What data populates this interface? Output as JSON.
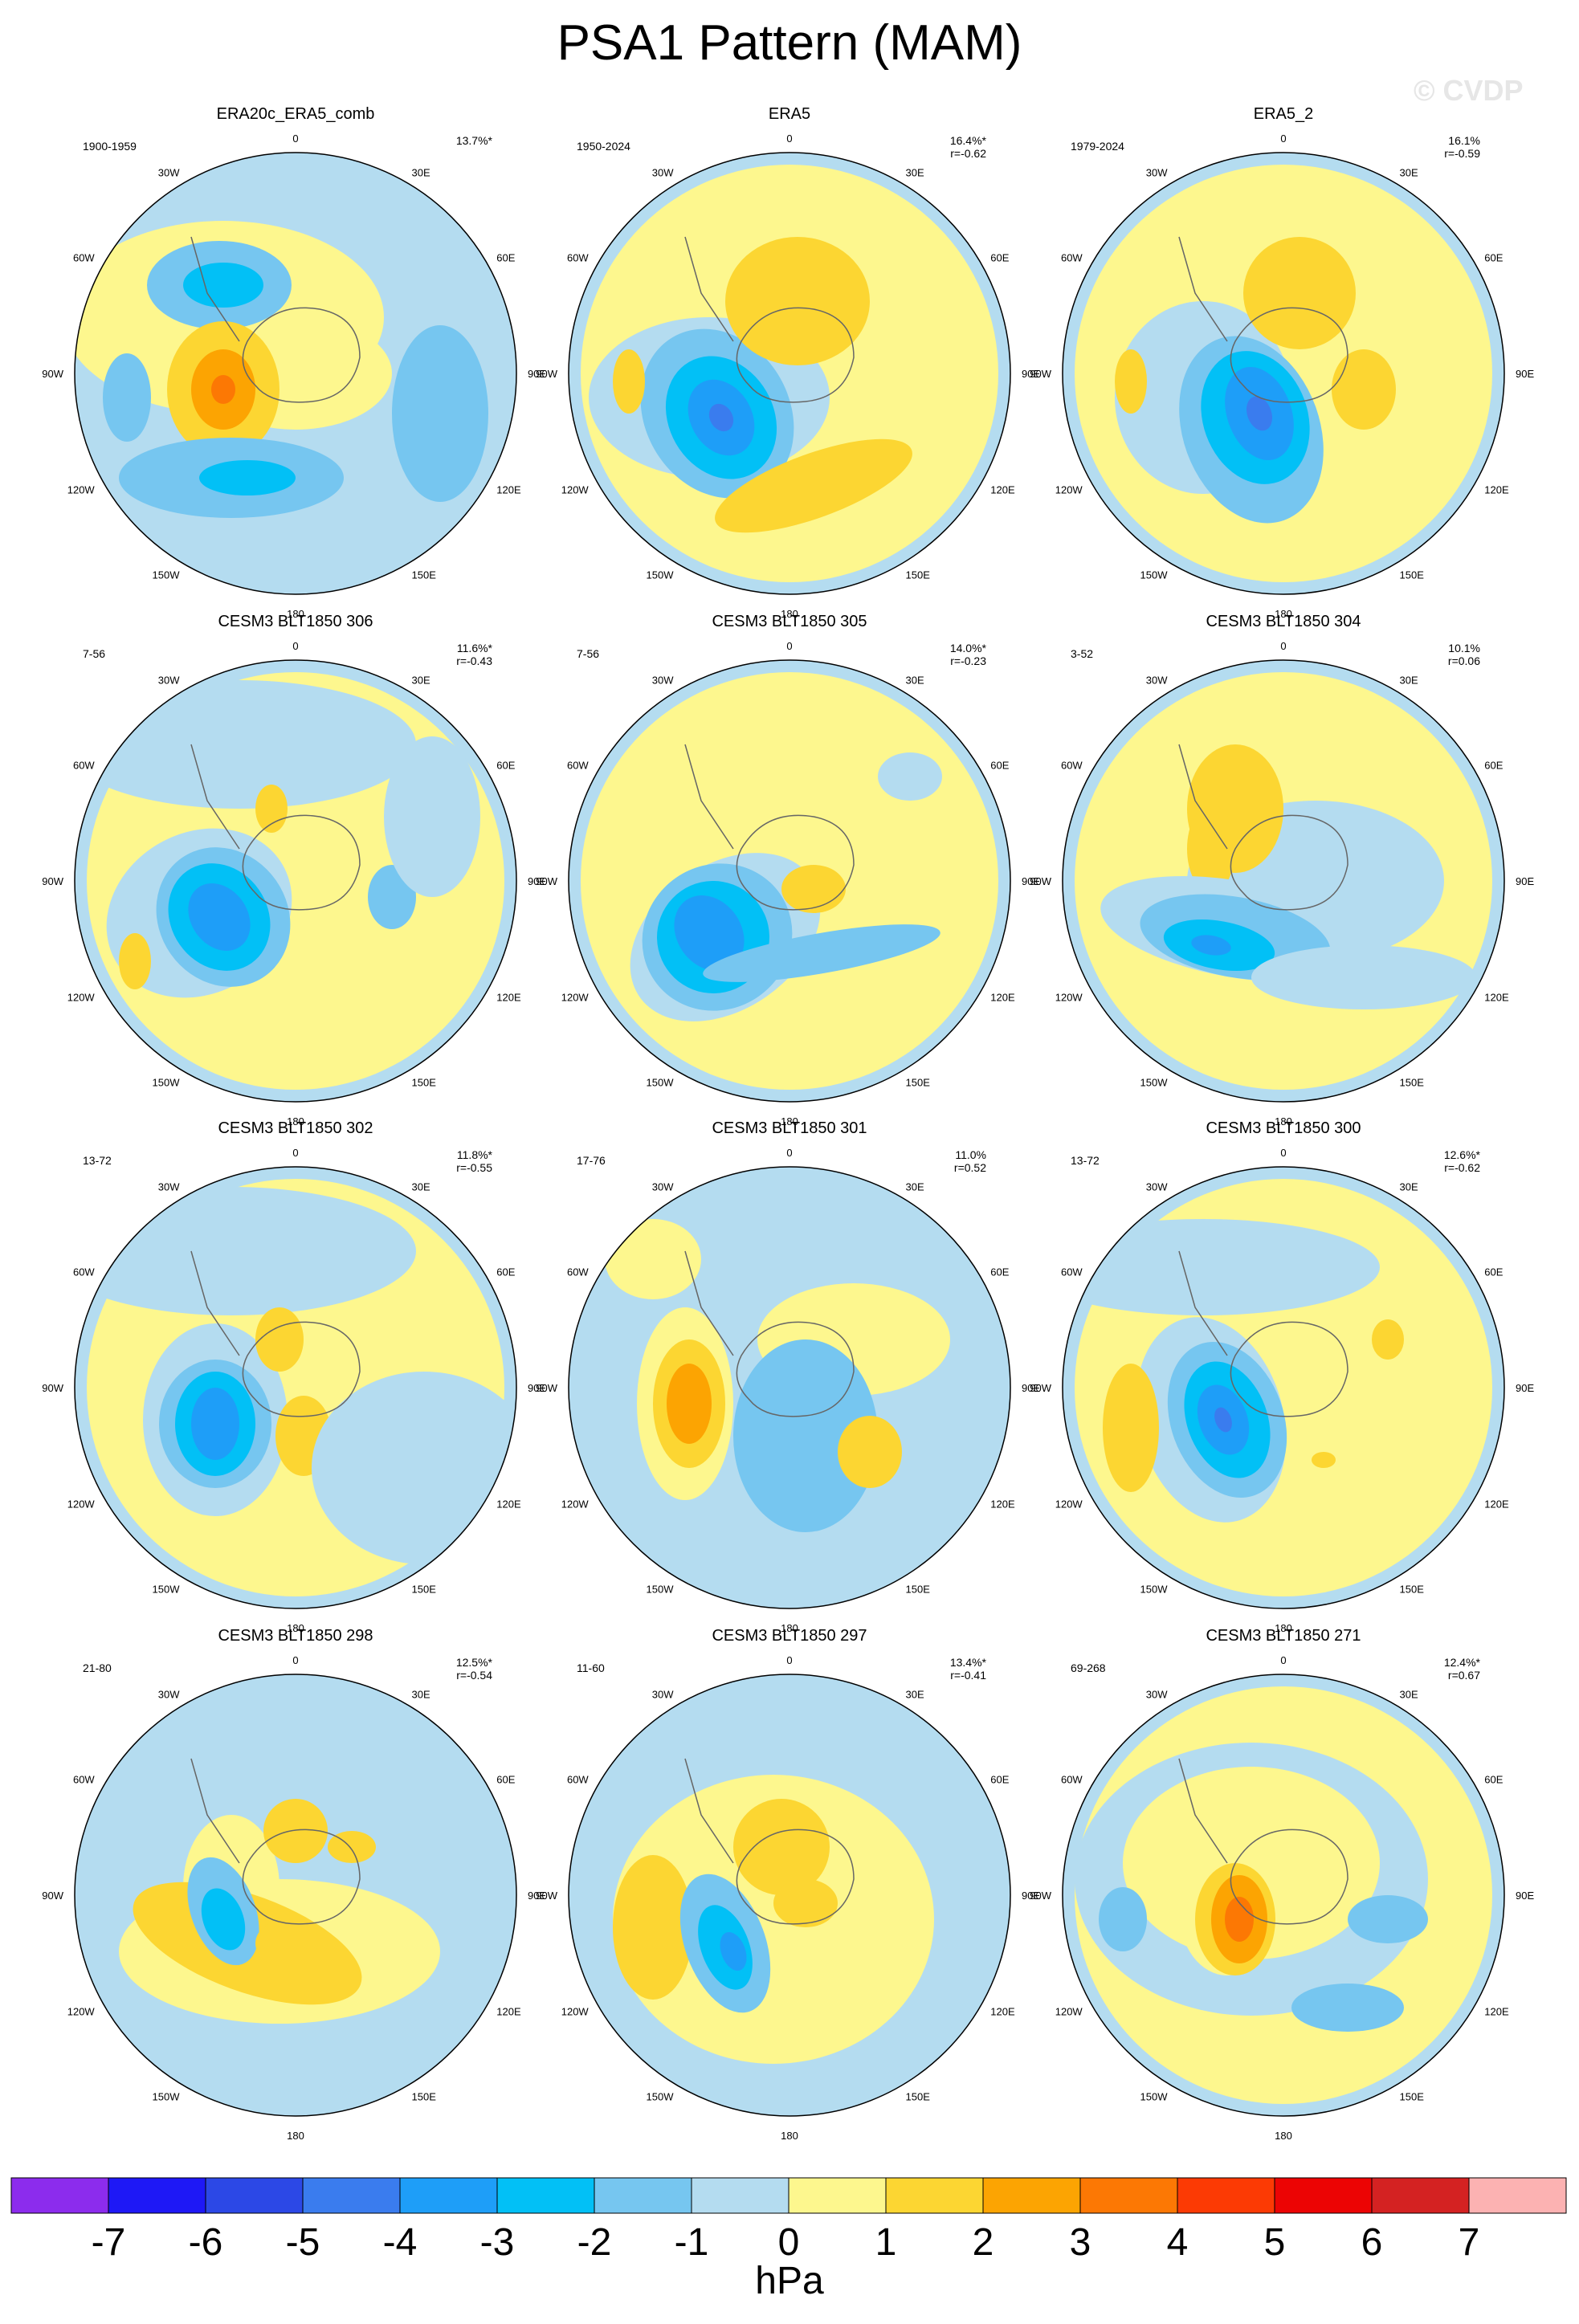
{
  "title": "PSA1 Pattern (MAM)",
  "watermark": "© CVDP",
  "colors": {
    "ocean_bg": "#b4dcf0",
    "levels": [
      "#8c2ced",
      "#1e18f6",
      "#2c48e6",
      "#3a7cee",
      "#1e9ef8",
      "#02c0f6",
      "#76c6f0",
      "#b4dcf0",
      "#fdf78e",
      "#fcd632",
      "#fca402",
      "#fc7804",
      "#fc3a04",
      "#ec0404",
      "#d42222",
      "#fcb2b2"
    ]
  },
  "map_labels": {
    "top": "0",
    "bottom": "180",
    "left_upper": "30W",
    "left_mid_upper": "60W",
    "left_mid": "90W",
    "left_mid_lower": "120W",
    "left_lower": "150W",
    "right_upper": "30E",
    "right_mid_upper": "60E",
    "right_mid": "90E",
    "right_mid_lower": "120E",
    "right_lower": "150E"
  },
  "panels": [
    {
      "title": "ERA20c_ERA5_comb",
      "years": "1900-1959",
      "pct": "13.7%*",
      "r": ""
    },
    {
      "title": "ERA5",
      "years": "1950-2024",
      "pct": "16.4%*",
      "r": "r=-0.62"
    },
    {
      "title": "ERA5_2",
      "years": "1979-2024",
      "pct": "16.1%",
      "r": "r=-0.59"
    },
    {
      "title": "CESM3 BLT1850 306",
      "years": "7-56",
      "pct": "11.6%*",
      "r": "r=-0.43"
    },
    {
      "title": "CESM3 BLT1850 305",
      "years": "7-56",
      "pct": "14.0%*",
      "r": "r=-0.23"
    },
    {
      "title": "CESM3 BLT1850 304",
      "years": "3-52",
      "pct": "10.1%",
      "r": "r=0.06"
    },
    {
      "title": "CESM3 BLT1850 302",
      "years": "13-72",
      "pct": "11.8%*",
      "r": "r=-0.55"
    },
    {
      "title": "CESM3 BLT1850 301",
      "years": "17-76",
      "pct": "11.0%",
      "r": "r=0.52"
    },
    {
      "title": "CESM3 BLT1850 300",
      "years": "13-72",
      "pct": "12.6%*",
      "r": "r=-0.62"
    },
    {
      "title": "CESM3 BLT1850 298",
      "years": "21-80",
      "pct": "12.5%*",
      "r": "r=-0.54"
    },
    {
      "title": "CESM3 BLT1850 297",
      "years": "11-60",
      "pct": "13.4%*",
      "r": "r=-0.41"
    },
    {
      "title": "CESM3 BLT1850 271",
      "years": "69-268",
      "pct": "12.4%*",
      "r": "r=0.67"
    }
  ],
  "colorbar": {
    "labels": [
      "-7",
      "-6",
      "-5",
      "-4",
      "-3",
      "-2",
      "-1",
      "0",
      "1",
      "2",
      "3",
      "4",
      "5",
      "6",
      "7"
    ],
    "units": "hPa"
  }
}
